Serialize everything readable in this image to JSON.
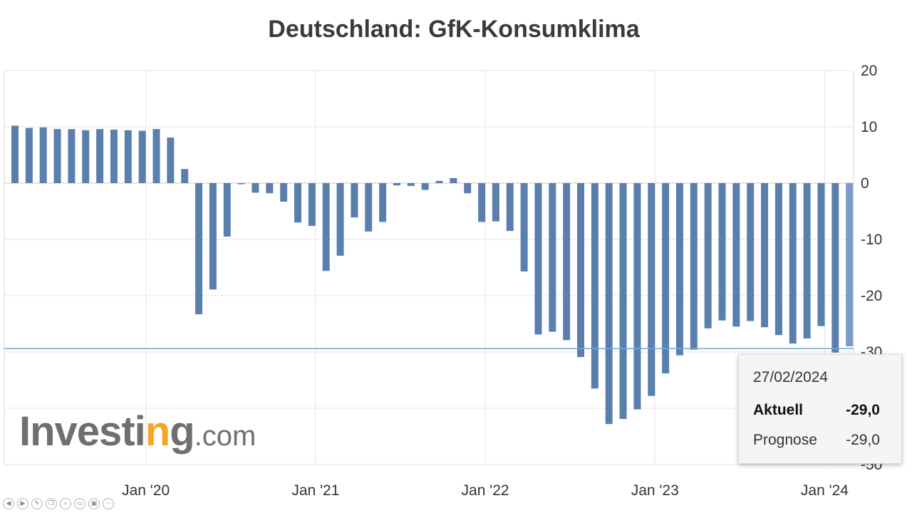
{
  "chart_data": {
    "type": "bar",
    "title": "Deutschland: GfK-Konsumklima",
    "xlabel": "",
    "ylabel": "",
    "ylim": [
      -50,
      20
    ],
    "yticks": [
      20,
      10,
      0,
      -10,
      -20,
      -30,
      -40,
      -50
    ],
    "ytick_labels": [
      "20",
      "10",
      "0",
      "-10",
      "-20",
      "-30",
      "",
      "-50"
    ],
    "xtick_labels": [
      {
        "label": "Jan '20",
        "index": 9
      },
      {
        "label": "Jan '21",
        "index": 21
      },
      {
        "label": "Jan '22",
        "index": 33
      },
      {
        "label": "Jan '23",
        "index": 45
      },
      {
        "label": "Jan '24",
        "index": 57
      }
    ],
    "grid": true,
    "reference_line": -29.4,
    "values": [
      10.2,
      9.8,
      9.9,
      9.6,
      9.6,
      9.4,
      9.6,
      9.5,
      9.4,
      9.3,
      9.6,
      8.1,
      2.5,
      -23.3,
      -18.9,
      -9.5,
      -0.2,
      -1.7,
      -1.8,
      -3.3,
      -7.0,
      -7.6,
      -15.6,
      -12.9,
      -6.1,
      -8.6,
      -6.9,
      -0.4,
      -0.5,
      -1.2,
      0.4,
      0.9,
      -1.8,
      -6.9,
      -6.8,
      -8.5,
      -15.7,
      -26.9,
      -26.4,
      -27.9,
      -30.9,
      -36.5,
      -42.8,
      -41.9,
      -40.2,
      -37.8,
      -33.8,
      -30.6,
      -29.6,
      -25.8,
      -24.4,
      -25.5,
      -24.5,
      -25.6,
      -27.0,
      -28.5,
      -27.6,
      -25.4,
      -30.1,
      -29.0
    ],
    "tooltip": {
      "date": "27/02/2024",
      "actual_label": "Aktuell",
      "actual_value": "-29,0",
      "forecast_label": "Prognose",
      "forecast_value": "-29,0"
    },
    "colors": {
      "bar": "#5b7fad",
      "bar_highlight": "#7a9bc9",
      "reference_line": "#6fa8dc",
      "grid": "#e6e6e6"
    }
  },
  "watermark": {
    "text_before": "Investi",
    "text_accent_char": "n",
    "text_after": "g",
    "domain": ".com"
  },
  "toolbar_icons": [
    "prev-icon",
    "next-icon",
    "pen-icon",
    "copy-icon",
    "zoom-icon",
    "slide-icon",
    "video-icon",
    "more-icon"
  ]
}
